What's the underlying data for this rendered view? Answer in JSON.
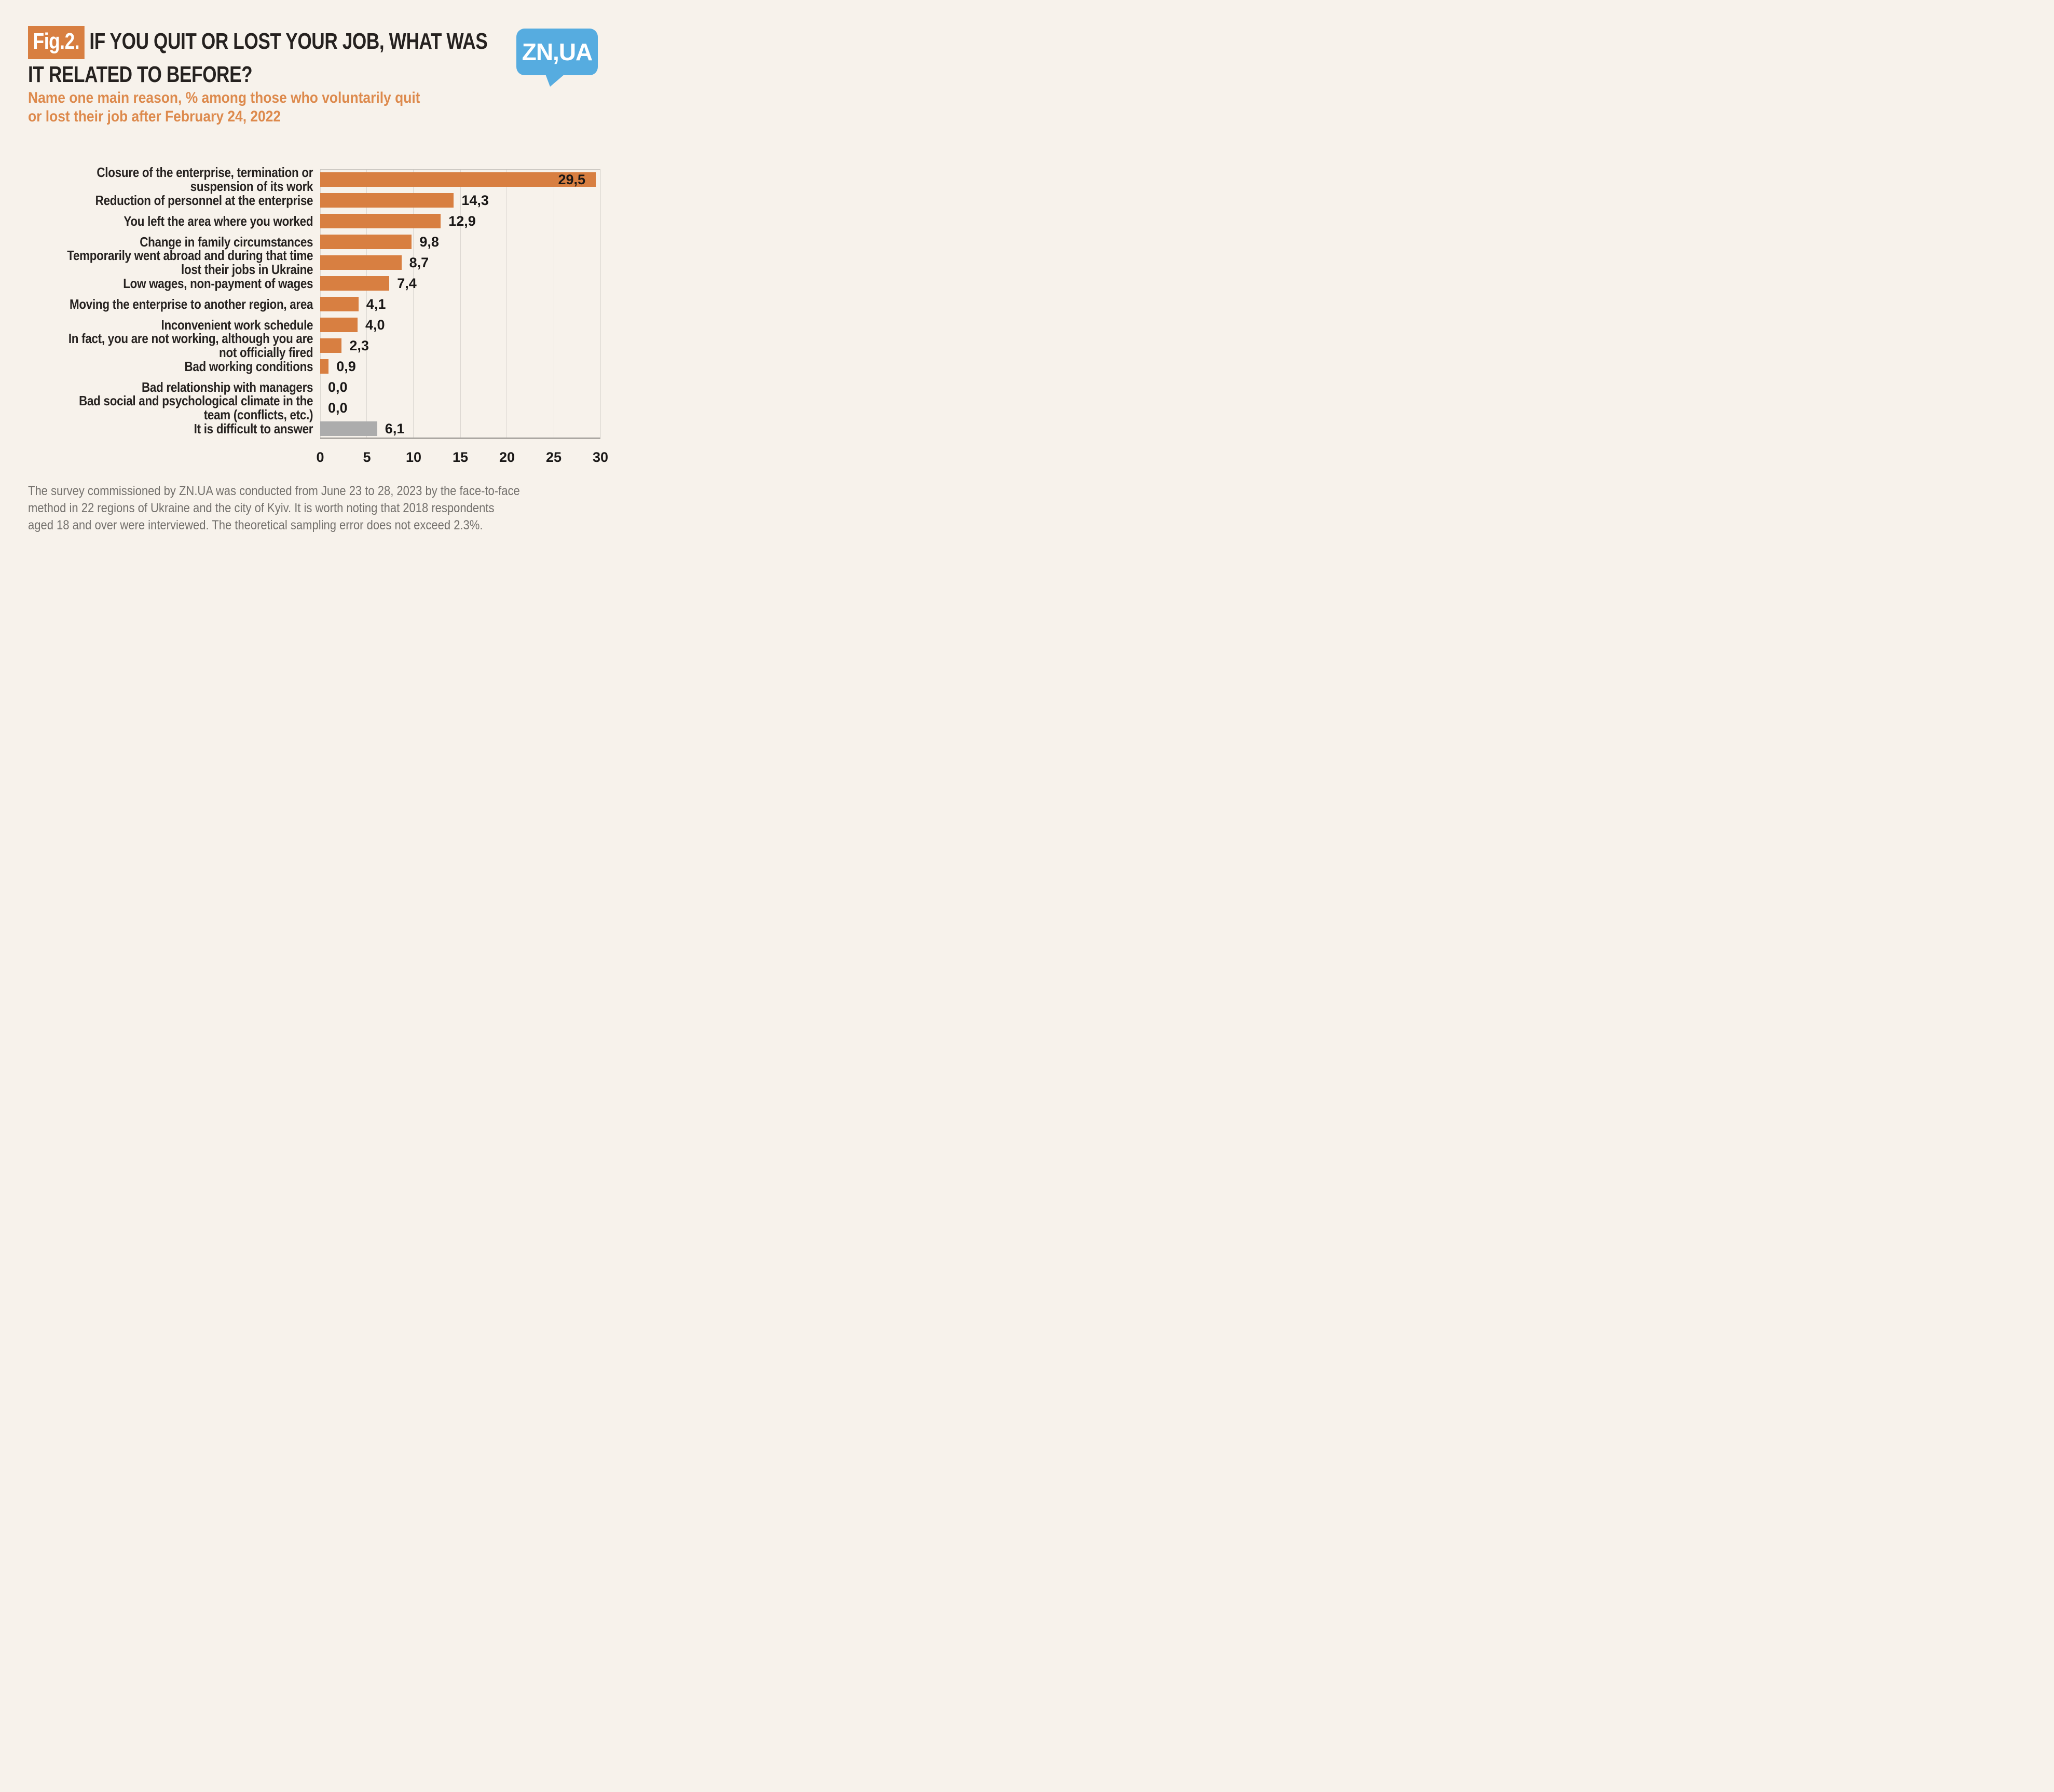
{
  "header": {
    "figure_label": "Fig.2.",
    "title_lines": [
      "IF YOU QUIT OR LOST YOUR JOB, WHAT WAS",
      "IT RELATED TO BEFORE?"
    ],
    "subtitle_lines": [
      "Name one main reason, % among those who voluntarily quit",
      "or lost their job after February 24, 2022"
    ],
    "logo_text": "ZN,UA"
  },
  "footnote": "The survey commissioned by ZN.UA was conducted from June 23 to 28, 2023 by the face-to-face method in 22 regions of Ukraine and the city of Kyiv. It is worth noting that 2018 respondents aged 18 and over were interviewed. The theoretical sampling error does not exceed 2.3%.",
  "colors": {
    "background": "#F7F2EB",
    "bar_orange": "#D87F41",
    "bar_gray": "#ACACAC",
    "accent_orange": "#DD8A4D",
    "title_text": "#262220",
    "value_text": "#1A1817",
    "footnote_text": "#73706C",
    "logo_blue": "#56ACE0",
    "gridline": "#DBD7D1",
    "plot_border": "#C9C5BF",
    "axis_line": "#ACA8A3"
  },
  "chart_data": {
    "type": "bar",
    "orientation": "horizontal",
    "title": "Fig.2. If you quit or lost your job, what was it related to before?",
    "subtitle": "Name one main reason, % among those who voluntarily quit or lost their job after February 24, 2022",
    "xlabel": "",
    "ylabel": "",
    "xlim": [
      0,
      30
    ],
    "xticks": [
      0,
      5,
      10,
      15,
      20,
      25,
      30
    ],
    "grid": true,
    "legend": false,
    "decimal_separator": ",",
    "categories": [
      "Closure of the enterprise, termination or suspension of its work",
      "Reduction of personnel at the enterprise",
      "You left the area where you worked",
      "Change in family circumstances",
      "Temporarily went abroad and during that time lost their jobs in Ukraine",
      "Low wages, non-payment of wages",
      "Moving the enterprise to another region, area",
      "Inconvenient work schedule",
      "In fact, you are not working, although you are not officially fired",
      "Bad working conditions",
      "Bad relationship with managers",
      "Bad social and psychological climate in the team (conflicts, etc.)",
      "It is difficult to answer"
    ],
    "values": [
      29.5,
      14.3,
      12.9,
      9.8,
      8.7,
      7.4,
      4.1,
      4.0,
      2.3,
      0.9,
      0.0,
      0.0,
      6.1
    ],
    "value_labels": [
      "29,5",
      "14,3",
      "12,9",
      "9,8",
      "8,7",
      "7,4",
      "4,1",
      "4,0",
      "2,3",
      "0,9",
      "0,0",
      "0,0",
      "6,1"
    ],
    "bar_color_keys": [
      "orange",
      "orange",
      "orange",
      "orange",
      "orange",
      "orange",
      "orange",
      "orange",
      "orange",
      "orange",
      "orange",
      "orange",
      "gray"
    ],
    "value_label_inside": [
      true,
      false,
      false,
      false,
      false,
      false,
      false,
      false,
      false,
      false,
      false,
      false,
      false
    ]
  }
}
